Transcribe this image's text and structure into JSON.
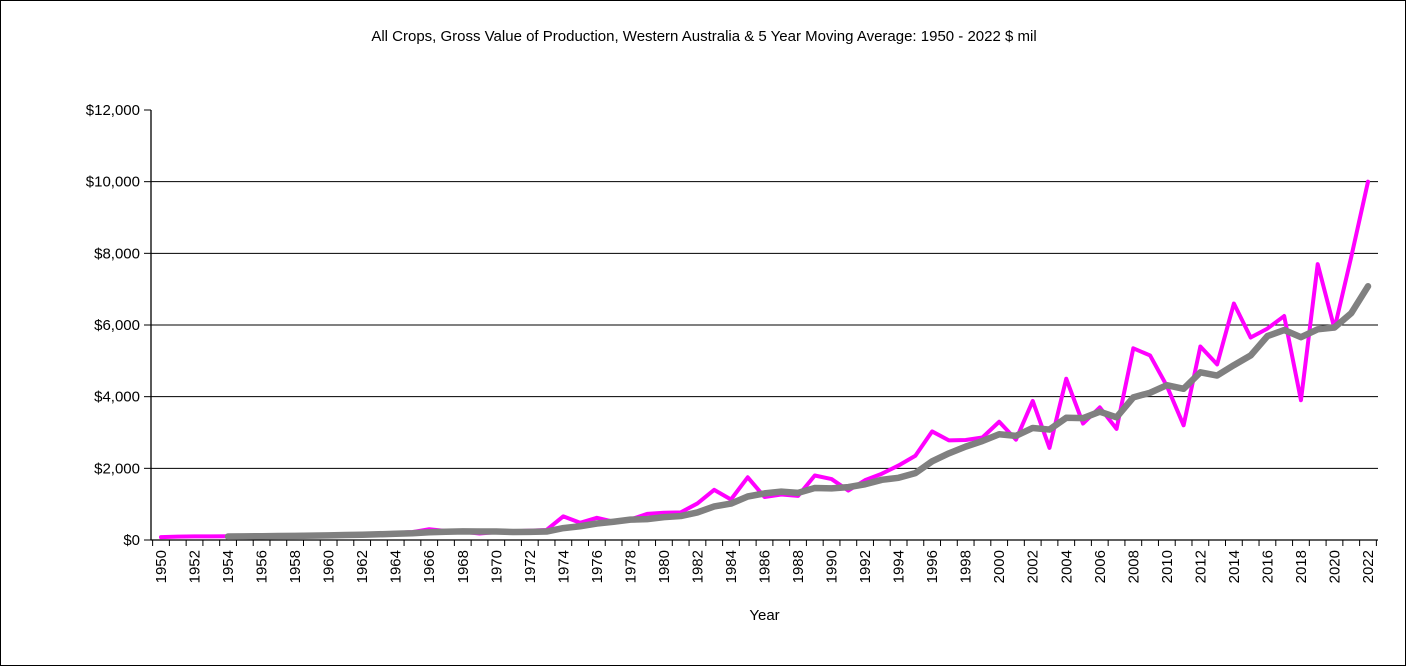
{
  "window": {
    "background": "#FFFFFF",
    "border_color": "#000000",
    "text_color": "#000000"
  },
  "chart_data": {
    "type": "line",
    "title": "All Crops, Gross Value of Production, Western Australia & 5 Year Moving Average: 1950 - 2022 $ mil",
    "xlabel": "Year",
    "ylabel": "",
    "ylim": [
      0,
      12000
    ],
    "grid": "horizontal",
    "legend": "none",
    "x_tick_label_every": 2,
    "x_tick_label_rotation": -90,
    "y_ticks": [
      {
        "value": 0,
        "label": "$0"
      },
      {
        "value": 2000,
        "label": "$2,000"
      },
      {
        "value": 4000,
        "label": "$4,000"
      },
      {
        "value": 6000,
        "label": "$6,000"
      },
      {
        "value": 8000,
        "label": "$8,000"
      },
      {
        "value": 10000,
        "label": "$10,000"
      },
      {
        "value": 12000,
        "label": "$12,000"
      }
    ],
    "x": [
      1950,
      1951,
      1952,
      1953,
      1954,
      1955,
      1956,
      1957,
      1958,
      1959,
      1960,
      1961,
      1962,
      1963,
      1964,
      1965,
      1966,
      1967,
      1968,
      1969,
      1970,
      1971,
      1972,
      1973,
      1974,
      1975,
      1976,
      1977,
      1978,
      1979,
      1980,
      1981,
      1982,
      1983,
      1984,
      1985,
      1986,
      1987,
      1988,
      1989,
      1990,
      1991,
      1992,
      1993,
      1994,
      1995,
      1996,
      1997,
      1998,
      1999,
      2000,
      2001,
      2002,
      2003,
      2004,
      2005,
      2006,
      2007,
      2008,
      2009,
      2010,
      2011,
      2012,
      2013,
      2014,
      2015,
      2016,
      2017,
      2018,
      2019,
      2020,
      2021,
      2022
    ],
    "series": [
      {
        "name": "All Crops, Gross Value of Production ($ mil)",
        "color": "#FF00FF",
        "line_width": 4,
        "values": [
          80,
          95,
          100,
          100,
          105,
          110,
          115,
          120,
          125,
          135,
          150,
          160,
          170,
          185,
          200,
          220,
          300,
          250,
          230,
          180,
          220,
          240,
          260,
          280,
          660,
          480,
          620,
          510,
          570,
          730,
          760,
          770,
          1020,
          1400,
          1130,
          1750,
          1200,
          1270,
          1230,
          1800,
          1700,
          1380,
          1670,
          1850,
          2080,
          2350,
          3030,
          2780,
          2790,
          2860,
          3300,
          2800,
          3880,
          2570,
          4500,
          3250,
          3700,
          3100,
          5350,
          5150,
          4300,
          3200,
          5400,
          4900,
          6600,
          5650,
          5900,
          6250,
          3900,
          7700,
          5900,
          7900,
          10000
        ]
      },
      {
        "name": "5 Year Moving Average",
        "color": "#808080",
        "line_width": 6.5,
        "values": [
          null,
          null,
          null,
          null,
          96,
          102,
          106,
          110,
          115,
          121,
          129,
          138,
          148,
          160,
          173,
          187,
          215,
          231,
          240,
          236,
          236,
          224,
          226,
          236,
          332,
          384,
          460,
          510,
          568,
          582,
          638,
          668,
          770,
          936,
          1016,
          1214,
          1300,
          1350,
          1316,
          1450,
          1440,
          1476,
          1556,
          1680,
          1736,
          1866,
          2196,
          2418,
          2606,
          2762,
          2952,
          2906,
          3126,
          3082,
          3410,
          3400,
          3580,
          3424,
          3980,
          4110,
          4320,
          4220,
          4680,
          4590,
          4880,
          5150,
          5690,
          5860,
          5660,
          5880,
          5930,
          6330,
          7080
        ]
      }
    ]
  }
}
